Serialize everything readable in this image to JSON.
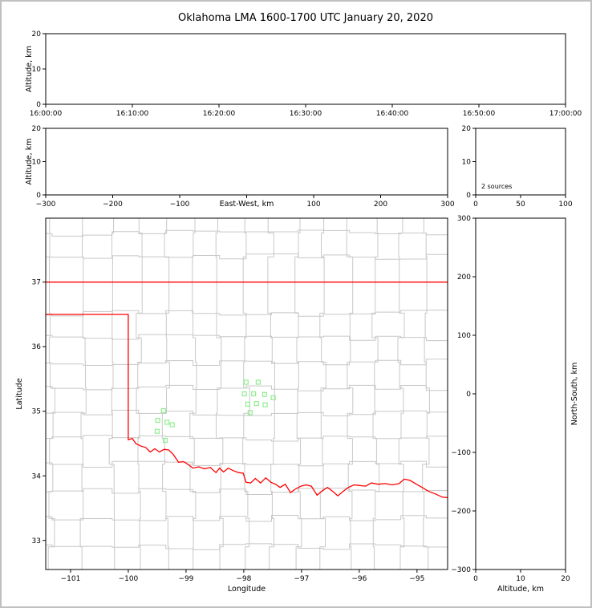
{
  "title": "Oklahoma LMA 1600-1700 UTC January 20, 2020",
  "colors": {
    "axis": "#000000",
    "frame_border": "#c0c0c0",
    "source_marker": "#90EE90",
    "state_border": "#ff0000",
    "county_line": "#c8c8c8",
    "background": "#ffffff"
  },
  "chart_data": [
    {
      "id": "time_height",
      "type": "scatter",
      "xlabel": "",
      "ylabel": "Altitude, km",
      "xlim": [
        0,
        6
      ],
      "xticks": [
        0,
        1,
        2,
        3,
        4,
        5,
        6
      ],
      "xtick_labels": [
        "16:00:00",
        "16:10:00",
        "16:20:00",
        "16:30:00",
        "16:40:00",
        "16:50:00",
        "17:00:00"
      ],
      "ylim": [
        0,
        20
      ],
      "yticks": [
        0,
        10,
        20
      ],
      "points": []
    },
    {
      "id": "ew_height",
      "type": "scatter",
      "xlabel": "East-West, km",
      "xlabel_inline": true,
      "ylabel": "Altitude, km",
      "xlim": [
        -300,
        300
      ],
      "xticks": [
        -300,
        -200,
        -100,
        0,
        100,
        200,
        300
      ],
      "ylim": [
        0,
        20
      ],
      "yticks": [
        0,
        10,
        20
      ],
      "points": []
    },
    {
      "id": "altitude_histogram",
      "type": "line",
      "xlabel": "",
      "ylabel": "",
      "xlim": [
        0,
        100
      ],
      "xticks": [
        0,
        50,
        100
      ],
      "ylim": [
        0,
        20
      ],
      "yticks": [
        0,
        10,
        20
      ],
      "annotation": "2 sources",
      "points": []
    },
    {
      "id": "plan_view",
      "type": "scatter",
      "xlabel": "Longitude",
      "ylabel": "Latitude",
      "xlim": [
        -101.43,
        -94.47
      ],
      "xticks": [
        -101,
        -100,
        -99,
        -98,
        -97,
        -96,
        -95
      ],
      "ylim": [
        32.55,
        37.99
      ],
      "yticks": [
        33,
        34,
        35,
        36,
        37
      ],
      "points": [
        [
          -97.96,
          35.45
        ],
        [
          -97.75,
          35.45
        ],
        [
          -97.99,
          35.27
        ],
        [
          -97.83,
          35.27
        ],
        [
          -97.64,
          35.26
        ],
        [
          -97.49,
          35.21
        ],
        [
          -97.93,
          35.11
        ],
        [
          -97.78,
          35.12
        ],
        [
          -97.63,
          35.1
        ],
        [
          -97.89,
          34.98
        ],
        [
          -99.39,
          35.01
        ],
        [
          -99.49,
          34.86
        ],
        [
          -99.33,
          34.83
        ],
        [
          -99.24,
          34.79
        ],
        [
          -99.5,
          34.69
        ],
        [
          -99.36,
          34.55
        ]
      ]
    },
    {
      "id": "ns_height",
      "type": "scatter",
      "xlabel": "Altitude, km",
      "ylabel": "North-South, km",
      "ylabel_side": "right",
      "xlim": [
        0,
        20
      ],
      "xticks": [
        0,
        10,
        20
      ],
      "ylim": [
        -300,
        300
      ],
      "yticks": [
        300,
        200,
        100,
        0,
        -100,
        -200,
        -300
      ],
      "points": []
    }
  ],
  "map_features": {
    "state_border_color": "#ff0000",
    "county_line_color": "#c8c8c8",
    "north_border": [
      [
        -101.43,
        37.0
      ],
      [
        -94.47,
        37.0
      ]
    ],
    "west_south_border": [
      [
        -101.43,
        36.5
      ],
      [
        -100.0,
        36.5
      ],
      [
        -100.0,
        34.56
      ],
      [
        -99.93,
        34.58
      ],
      [
        -99.87,
        34.5
      ],
      [
        -99.78,
        34.46
      ],
      [
        -99.7,
        34.44
      ],
      [
        -99.62,
        34.37
      ],
      [
        -99.54,
        34.42
      ],
      [
        -99.46,
        34.37
      ],
      [
        -99.38,
        34.41
      ],
      [
        -99.3,
        34.4
      ],
      [
        -99.22,
        34.33
      ],
      [
        -99.13,
        34.21
      ],
      [
        -99.04,
        34.22
      ],
      [
        -98.97,
        34.18
      ],
      [
        -98.88,
        34.12
      ],
      [
        -98.78,
        34.14
      ],
      [
        -98.68,
        34.11
      ],
      [
        -98.58,
        34.13
      ],
      [
        -98.48,
        34.05
      ],
      [
        -98.42,
        34.12
      ],
      [
        -98.35,
        34.06
      ],
      [
        -98.27,
        34.12
      ],
      [
        -98.18,
        34.08
      ],
      [
        -98.09,
        34.05
      ],
      [
        -98.01,
        34.04
      ],
      [
        -97.96,
        33.9
      ],
      [
        -97.88,
        33.89
      ],
      [
        -97.8,
        33.96
      ],
      [
        -97.71,
        33.89
      ],
      [
        -97.62,
        33.97
      ],
      [
        -97.53,
        33.9
      ],
      [
        -97.45,
        33.87
      ],
      [
        -97.37,
        33.82
      ],
      [
        -97.28,
        33.87
      ],
      [
        -97.19,
        33.74
      ],
      [
        -97.1,
        33.8
      ],
      [
        -97.01,
        33.84
      ],
      [
        -96.92,
        33.86
      ],
      [
        -96.83,
        33.84
      ],
      [
        -96.73,
        33.7
      ],
      [
        -96.64,
        33.77
      ],
      [
        -96.55,
        33.82
      ],
      [
        -96.46,
        33.76
      ],
      [
        -96.37,
        33.69
      ],
      [
        -96.28,
        33.76
      ],
      [
        -96.19,
        33.82
      ],
      [
        -96.09,
        33.86
      ],
      [
        -95.99,
        33.85
      ],
      [
        -95.89,
        33.84
      ],
      [
        -95.79,
        33.89
      ],
      [
        -95.67,
        33.87
      ],
      [
        -95.55,
        33.88
      ],
      [
        -95.43,
        33.86
      ],
      [
        -95.31,
        33.88
      ],
      [
        -95.22,
        33.95
      ],
      [
        -95.12,
        33.93
      ],
      [
        -95.01,
        33.87
      ],
      [
        -94.91,
        33.82
      ],
      [
        -94.8,
        33.76
      ],
      [
        -94.68,
        33.72
      ],
      [
        -94.56,
        33.67
      ],
      [
        -94.45,
        33.66
      ]
    ],
    "county_verticals": [
      -101.32,
      -100.78,
      -100.28,
      -99.82,
      -99.35,
      -98.88,
      -98.42,
      -97.96,
      -97.52,
      -97.06,
      -96.62,
      -96.17,
      -95.72,
      -95.28,
      -94.84
    ],
    "county_horizontals": [
      32.9,
      33.34,
      33.76,
      34.18,
      34.58,
      34.97,
      35.36,
      35.76,
      36.14,
      36.52,
      37.39,
      37.76
    ]
  }
}
